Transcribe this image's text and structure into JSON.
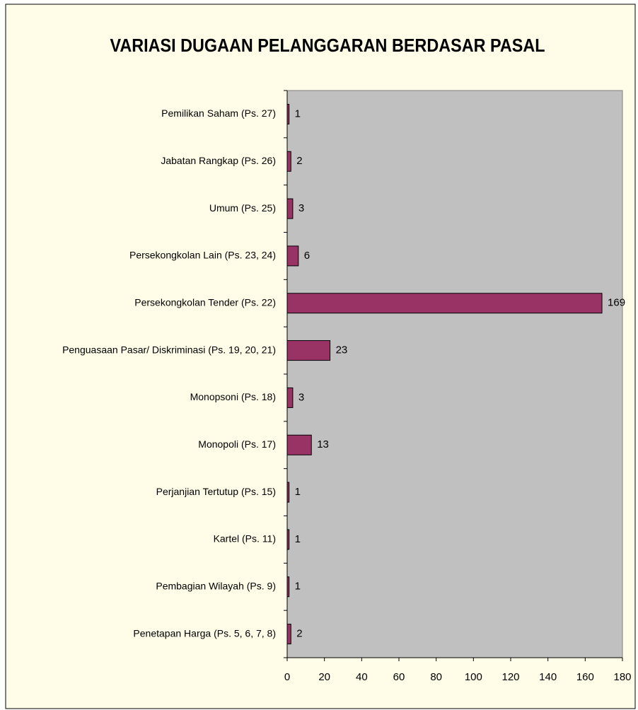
{
  "chart_data": {
    "type": "bar",
    "orientation": "horizontal",
    "title": "VARIASI DUGAAN PELANGGARAN BERDASAR PASAL",
    "categories": [
      "Pemilikan Saham (Ps. 27)",
      "Jabatan Rangkap (Ps. 26)",
      "Umum (Ps. 25)",
      "Persekongkolan Lain (Ps. 23, 24)",
      "Persekongkolan Tender (Ps. 22)",
      "Penguasaan Pasar/ Diskriminasi (Ps. 19, 20, 21)",
      "Monopsoni (Ps. 18)",
      "Monopoli (Ps. 17)",
      "Perjanjian Tertutup (Ps. 15)",
      "Kartel (Ps. 11)",
      "Pembagian Wilayah (Ps. 9)",
      "Penetapan Harga (Ps. 5, 6, 7, 8)"
    ],
    "values": [
      1,
      2,
      3,
      6,
      169,
      23,
      3,
      13,
      1,
      1,
      1,
      2
    ],
    "color": "#993366",
    "xlim": [
      0,
      180
    ],
    "xticks": [
      0,
      20,
      40,
      60,
      80,
      100,
      120,
      140,
      160,
      180
    ],
    "grid": false
  }
}
